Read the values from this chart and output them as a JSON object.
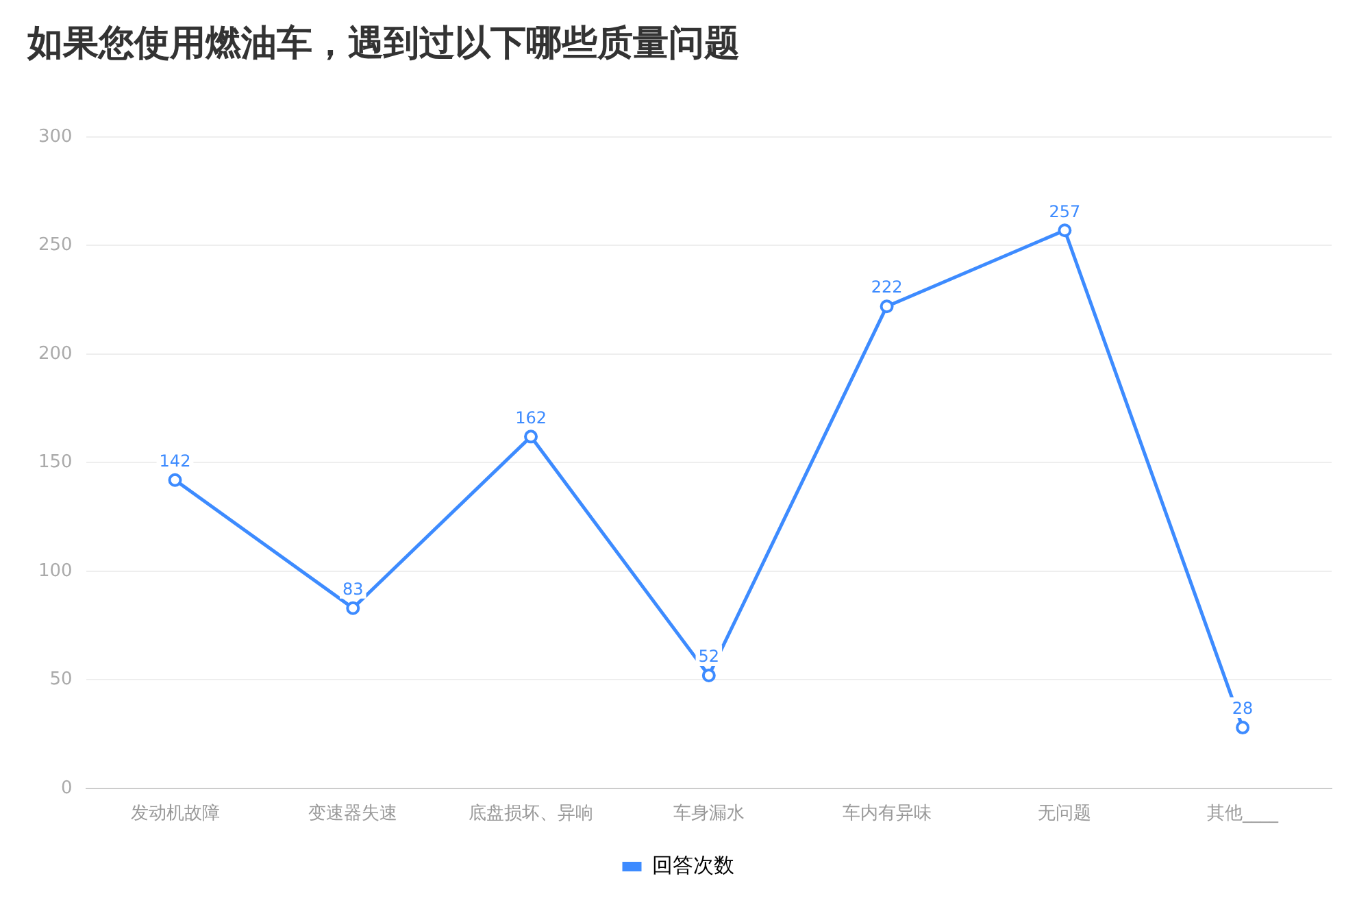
{
  "chart_data": {
    "type": "line",
    "title": "如果您使用燃油车，遇到过以下哪些质量问题",
    "categories": [
      "发动机故障",
      "变速器失速",
      "底盘损坏、异响",
      "车身漏水",
      "车内有异味",
      "无问题",
      "其他____"
    ],
    "series": [
      {
        "name": "回答次数",
        "color": "#3d8bff",
        "values": [
          142,
          83,
          162,
          52,
          222,
          257,
          28
        ]
      }
    ],
    "ylim": [
      0,
      300
    ],
    "yticks": [
      0,
      50,
      100,
      150,
      200,
      250,
      300
    ],
    "grid": "y",
    "legend": "bottom",
    "marker": "circle",
    "line_style": "solid",
    "data_labels": true
  }
}
